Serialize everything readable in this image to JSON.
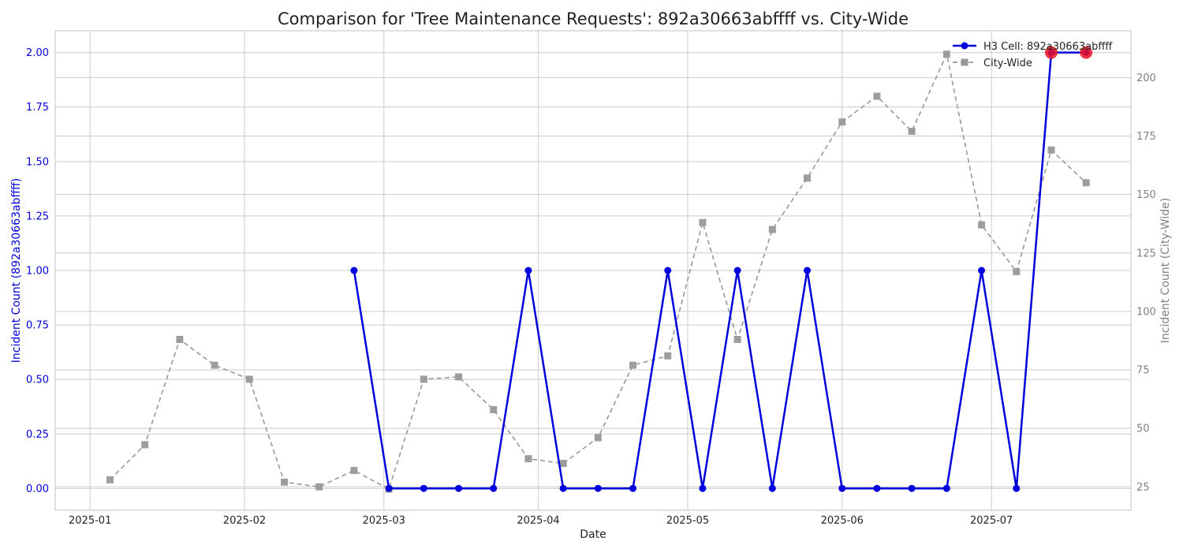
{
  "chart_data": {
    "type": "line",
    "title": "Comparison for 'Tree Maintenance Requests': 892a30663abffff vs. City-Wide",
    "xlabel": "Date",
    "ylabel_left": "Incident Count (892a30663abffff)",
    "ylabel_right": "Incident Count (City-Wide)",
    "x_ticks": [
      "2025-01",
      "2025-02",
      "2025-03",
      "2025-04",
      "2025-05",
      "2025-06",
      "2025-07"
    ],
    "x_tick_dates": [
      "2025-01-01",
      "2025-02-01",
      "2025-03-01",
      "2025-04-01",
      "2025-05-01",
      "2025-06-01",
      "2025-07-01"
    ],
    "xlim": [
      "2024-12-25",
      "2025-07-29"
    ],
    "y_left_ticks": [
      "0.00",
      "0.25",
      "0.50",
      "0.75",
      "1.00",
      "1.25",
      "1.50",
      "1.75",
      "2.00"
    ],
    "y_left_lim": [
      -0.1,
      2.1
    ],
    "y_right_ticks": [
      "25",
      "50",
      "75",
      "100",
      "125",
      "150",
      "175",
      "200"
    ],
    "y_right_lim": [
      15,
      220
    ],
    "grid": true,
    "legend_position": "top-right",
    "series": [
      {
        "name": "H3 Cell: 892a30663abffff",
        "axis": "left",
        "color": "#0000dd",
        "style": "solid",
        "marker": "circle",
        "x": [
          "2025-02-23",
          "2025-03-02",
          "2025-03-09",
          "2025-03-16",
          "2025-03-23",
          "2025-03-30",
          "2025-04-06",
          "2025-04-13",
          "2025-04-20",
          "2025-04-27",
          "2025-05-04",
          "2025-05-11",
          "2025-05-18",
          "2025-05-25",
          "2025-06-01",
          "2025-06-08",
          "2025-06-15",
          "2025-06-22",
          "2025-06-29",
          "2025-07-06",
          "2025-07-13",
          "2025-07-20"
        ],
        "y": [
          1,
          0,
          0,
          0,
          0,
          1,
          0,
          0,
          0,
          1,
          0,
          1,
          0,
          1,
          0,
          0,
          0,
          0,
          1,
          0,
          2,
          2
        ]
      },
      {
        "name": "City-Wide",
        "axis": "right",
        "color": "#999999",
        "style": "dashed",
        "marker": "square",
        "x": [
          "2025-01-05",
          "2025-01-12",
          "2025-01-19",
          "2025-01-26",
          "2025-02-02",
          "2025-02-09",
          "2025-02-16",
          "2025-02-23",
          "2025-03-02",
          "2025-03-09",
          "2025-03-16",
          "2025-03-23",
          "2025-03-30",
          "2025-04-06",
          "2025-04-13",
          "2025-04-20",
          "2025-04-27",
          "2025-05-04",
          "2025-05-11",
          "2025-05-18",
          "2025-05-25",
          "2025-06-01",
          "2025-06-08",
          "2025-06-15",
          "2025-06-22",
          "2025-06-29",
          "2025-07-06",
          "2025-07-13",
          "2025-07-20"
        ],
        "y": [
          28,
          43,
          88,
          77,
          71,
          27,
          25,
          32,
          24,
          71,
          72,
          58,
          37,
          35,
          46,
          77,
          81,
          138,
          88,
          135,
          157,
          181,
          192,
          177,
          210,
          137,
          117,
          169,
          155
        ]
      }
    ],
    "highlight_color": "#ee1122",
    "highlights_x": [
      "2025-07-13",
      "2025-07-20"
    ],
    "highlights_y": [
      2,
      2
    ]
  }
}
